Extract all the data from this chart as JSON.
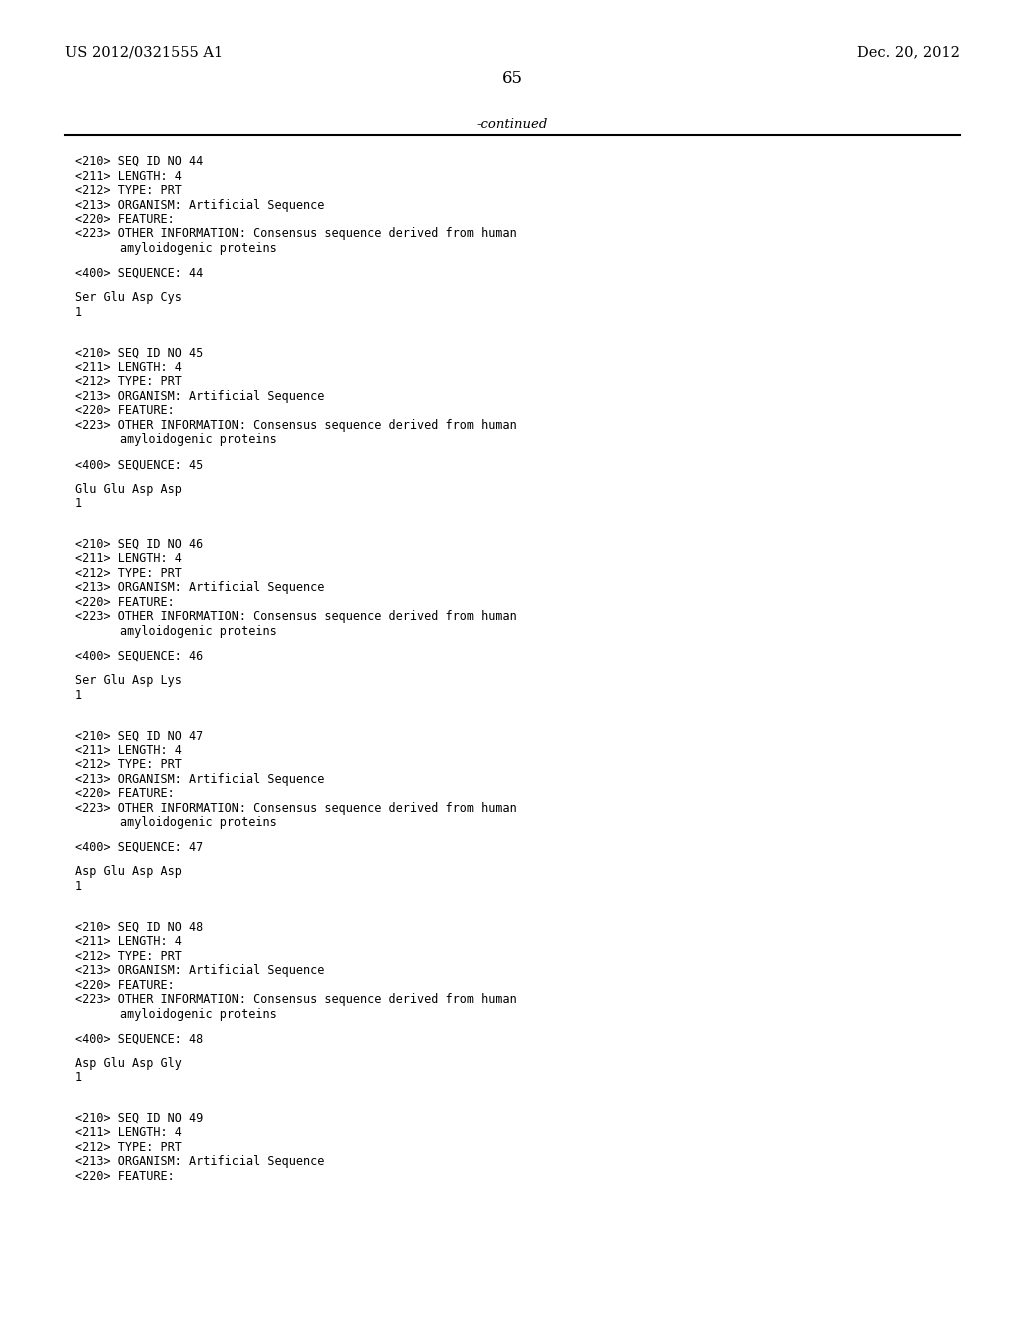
{
  "bg_color": "#ffffff",
  "header_left": "US 2012/0321555 A1",
  "header_right": "Dec. 20, 2012",
  "page_number": "65",
  "continued_text": "-continued",
  "entries_full": [
    {
      "seq_id": "44",
      "sequence_data": "Ser Glu Asp Cys",
      "sequence_num": "1"
    },
    {
      "seq_id": "45",
      "sequence_data": "Glu Glu Asp Asp",
      "sequence_num": "1"
    },
    {
      "seq_id": "46",
      "sequence_data": "Ser Glu Asp Lys",
      "sequence_num": "1"
    },
    {
      "seq_id": "47",
      "sequence_data": "Asp Glu Asp Asp",
      "sequence_num": "1"
    },
    {
      "seq_id": "48",
      "sequence_data": "Asp Glu Asp Gly",
      "sequence_num": "1"
    }
  ],
  "entry_partial": {
    "seq_id": "49",
    "lines": [
      "<210> SEQ ID NO 49",
      "<211> LENGTH: 4",
      "<212> TYPE: PRT",
      "<213> ORGANISM: Artificial Sequence",
      "<220> FEATURE:"
    ]
  }
}
